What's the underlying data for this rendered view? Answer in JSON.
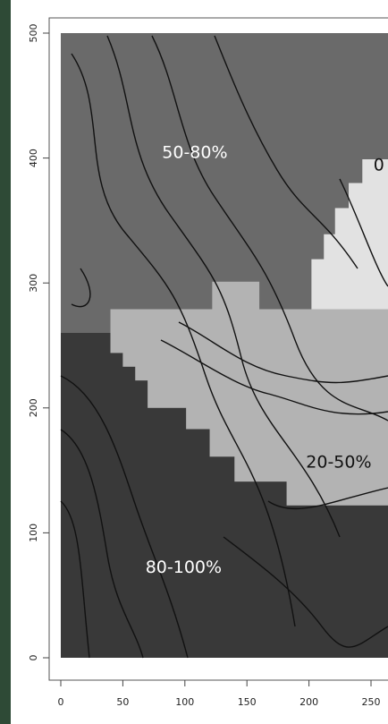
{
  "chart_data": {
    "type": "region-map",
    "xlim": [
      0,
      265
    ],
    "ylim": [
      0,
      500
    ],
    "xticks": [
      0,
      50,
      100,
      150,
      200,
      250
    ],
    "yticks": [
      0,
      100,
      200,
      300,
      400,
      500
    ],
    "regions": [
      {
        "name": "50-80%",
        "color": "#6a6a6a",
        "label_color": "#ffffff",
        "label_x": 108,
        "label_y": 404,
        "x": [
          0,
          265,
          265,
          0
        ],
        "y": [
          0,
          0,
          500,
          500
        ]
      },
      {
        "name": "80-100%",
        "color": "#393939",
        "label_color": "#ffffff",
        "label_x": 99,
        "label_y": 72,
        "x": [
          0,
          265,
          265,
          182,
          182,
          140,
          140,
          120,
          120,
          101,
          101,
          70,
          70,
          60,
          60,
          50,
          50,
          40,
          40,
          0
        ],
        "y": [
          0,
          0,
          122,
          122,
          141,
          141,
          161,
          161,
          183,
          183,
          200,
          200,
          222,
          222,
          233,
          233,
          244,
          244,
          260,
          260
        ]
      },
      {
        "name": "20-50%",
        "color": "#b3b3b3",
        "label_color": "#111111",
        "label_x": 224,
        "label_y": 156,
        "x": [
          40,
          40,
          122,
          122,
          160,
          160,
          265,
          265,
          182,
          182,
          140,
          140,
          120,
          120,
          101,
          101,
          70,
          70,
          60,
          60,
          50,
          50
        ],
        "y": [
          244,
          279,
          279,
          301,
          301,
          279,
          279,
          122,
          122,
          141,
          141,
          161,
          161,
          183,
          183,
          200,
          200,
          222,
          222,
          233,
          233,
          244
        ]
      },
      {
        "name": "0",
        "color": "#e2e2e2",
        "label_color": "#111111",
        "label_x": 252,
        "label_y": 394,
        "x": [
          202,
          202,
          212,
          212,
          221,
          221,
          232,
          232,
          243,
          243,
          265,
          265
        ],
        "y": [
          279,
          319,
          319,
          339,
          339,
          360,
          360,
          380,
          380,
          399,
          399,
          279
        ]
      }
    ]
  }
}
